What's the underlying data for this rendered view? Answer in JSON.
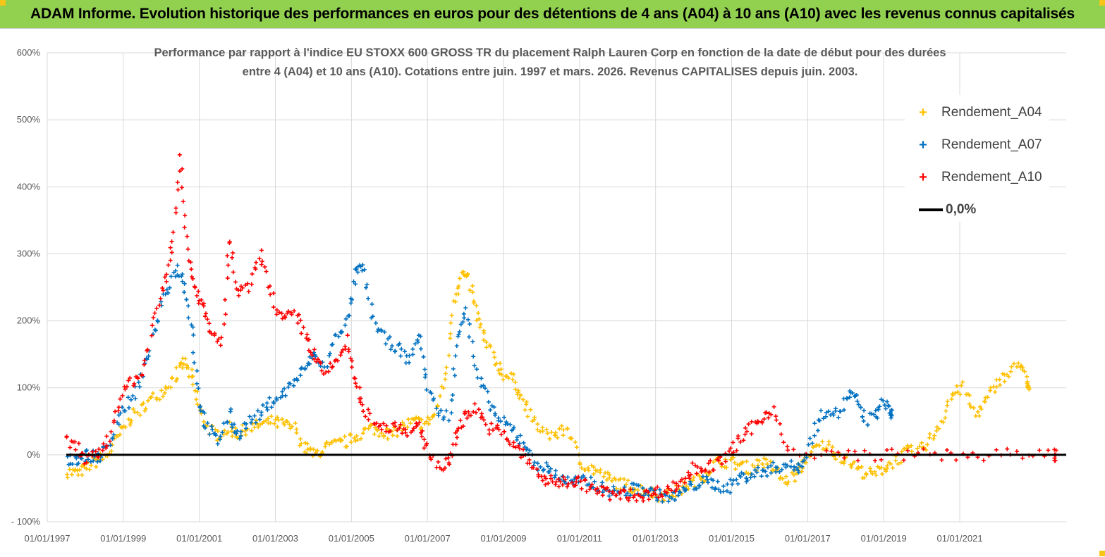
{
  "banner": {
    "title": "ADAM Informe. Evolution historique des performances en euros pour des détentions de 4 ans (A04) à 10 ans (A10) avec les revenus connus capitalisés"
  },
  "chart_data": {
    "type": "scatter",
    "title_line1": "Performance par rapport à l'indice EU STOXX 600 GROSS TR  du placement Ralph Lauren Corp en fonction de la date de début pour des durées",
    "title_line2": "entre 4 (A04) et 10 ans (A10).  Cotations entre juin. 1997 et mars. 2026.  Revenus CAPITALISES depuis juin. 2003.",
    "xlabel": "",
    "ylabel": "",
    "x_ticks": [
      "01/01/1997",
      "01/01/1999",
      "01/01/2001",
      "01/01/2003",
      "01/01/2005",
      "01/01/2007",
      "01/01/2009",
      "01/01/2011",
      "01/01/2013",
      "01/01/2015",
      "01/01/2017",
      "01/01/2019",
      "01/01/2021"
    ],
    "y_ticks": [
      "600%",
      "500%",
      "400%",
      "300%",
      "200%",
      "100%",
      "0%",
      "- 100%"
    ],
    "ylim": [
      -100,
      600
    ],
    "xlim": [
      1997.0,
      2023.8
    ],
    "grid": true,
    "legend_position": "top-right",
    "series": [
      {
        "name": "Rendement_A04",
        "color": "#ffc000",
        "marker": "+",
        "points": [
          [
            1997.5,
            -25
          ],
          [
            1997.8,
            -28
          ],
          [
            1998.0,
            -20
          ],
          [
            1998.3,
            -10
          ],
          [
            1998.6,
            0
          ],
          [
            1998.9,
            30
          ],
          [
            1999.2,
            55
          ],
          [
            1999.5,
            70
          ],
          [
            1999.8,
            85
          ],
          [
            2000.1,
            100
          ],
          [
            2000.4,
            120
          ],
          [
            2000.6,
            140
          ],
          [
            2000.8,
            115
          ],
          [
            2001.0,
            70
          ],
          [
            2001.2,
            40
          ],
          [
            2001.5,
            30
          ],
          [
            2001.8,
            40
          ],
          [
            2002.0,
            30
          ],
          [
            2002.3,
            40
          ],
          [
            2002.6,
            45
          ],
          [
            2002.9,
            50
          ],
          [
            2003.2,
            45
          ],
          [
            2003.5,
            40
          ],
          [
            2003.8,
            10
          ],
          [
            2004.0,
            0
          ],
          [
            2004.3,
            10
          ],
          [
            2004.6,
            15
          ],
          [
            2004.9,
            20
          ],
          [
            2005.2,
            30
          ],
          [
            2005.5,
            40
          ],
          [
            2005.8,
            35
          ],
          [
            2006.1,
            30
          ],
          [
            2006.4,
            45
          ],
          [
            2006.7,
            50
          ],
          [
            2006.9,
            45
          ],
          [
            2007.2,
            60
          ],
          [
            2007.5,
            120
          ],
          [
            2007.7,
            230
          ],
          [
            2007.9,
            270
          ],
          [
            2008.1,
            260
          ],
          [
            2008.3,
            210
          ],
          [
            2008.5,
            170
          ],
          [
            2008.8,
            140
          ],
          [
            2009.0,
            120
          ],
          [
            2009.3,
            110
          ],
          [
            2009.5,
            80
          ],
          [
            2009.8,
            50
          ],
          [
            2010.1,
            30
          ],
          [
            2010.4,
            30
          ],
          [
            2010.7,
            40
          ],
          [
            2011.0,
            -10
          ],
          [
            2011.3,
            -20
          ],
          [
            2011.6,
            -30
          ],
          [
            2011.9,
            -40
          ],
          [
            2012.2,
            -45
          ],
          [
            2012.5,
            -50
          ],
          [
            2012.8,
            -55
          ],
          [
            2013.1,
            -60
          ],
          [
            2013.4,
            -60
          ],
          [
            2013.7,
            -50
          ],
          [
            2014.0,
            -40
          ],
          [
            2014.3,
            -30
          ],
          [
            2014.6,
            -10
          ],
          [
            2014.9,
            -10
          ],
          [
            2015.2,
            -15
          ],
          [
            2015.5,
            -20
          ],
          [
            2015.8,
            -10
          ],
          [
            2016.1,
            -20
          ],
          [
            2016.4,
            -40
          ],
          [
            2016.7,
            -30
          ],
          [
            2016.9,
            -10
          ],
          [
            2017.2,
            10
          ],
          [
            2017.5,
            15
          ],
          [
            2017.8,
            0
          ],
          [
            2018.1,
            -10
          ],
          [
            2018.4,
            -25
          ],
          [
            2018.7,
            -30
          ],
          [
            2019.0,
            -20
          ],
          [
            2019.3,
            -10
          ],
          [
            2019.6,
            5
          ],
          [
            2019.9,
            5
          ],
          [
            2020.2,
            20
          ],
          [
            2020.5,
            50
          ],
          [
            2020.8,
            90
          ],
          [
            2021.1,
            100
          ],
          [
            2021.4,
            60
          ],
          [
            2021.7,
            80
          ],
          [
            2022.0,
            110
          ],
          [
            2022.3,
            120
          ],
          [
            2022.6,
            140
          ],
          [
            2022.8,
            100
          ]
        ]
      },
      {
        "name": "Rendement_A07",
        "color": "#0070c0",
        "marker": "+",
        "points": [
          [
            1997.5,
            -10
          ],
          [
            1997.8,
            -5
          ],
          [
            1998.0,
            0
          ],
          [
            1998.3,
            -5
          ],
          [
            1998.6,
            10
          ],
          [
            1998.9,
            60
          ],
          [
            1999.2,
            80
          ],
          [
            1999.5,
            120
          ],
          [
            1999.8,
            180
          ],
          [
            2000.1,
            240
          ],
          [
            2000.4,
            280
          ],
          [
            2000.6,
            260
          ],
          [
            2000.8,
            190
          ],
          [
            2001.0,
            80
          ],
          [
            2001.2,
            40
          ],
          [
            2001.5,
            20
          ],
          [
            2001.8,
            60
          ],
          [
            2002.0,
            30
          ],
          [
            2002.3,
            50
          ],
          [
            2002.6,
            60
          ],
          [
            2002.9,
            80
          ],
          [
            2003.2,
            90
          ],
          [
            2003.5,
            110
          ],
          [
            2003.8,
            130
          ],
          [
            2004.0,
            150
          ],
          [
            2004.3,
            130
          ],
          [
            2004.6,
            180
          ],
          [
            2004.9,
            200
          ],
          [
            2005.1,
            270
          ],
          [
            2005.3,
            280
          ],
          [
            2005.6,
            200
          ],
          [
            2005.9,
            170
          ],
          [
            2006.2,
            160
          ],
          [
            2006.5,
            140
          ],
          [
            2006.8,
            180
          ],
          [
            2007.0,
            100
          ],
          [
            2007.3,
            60
          ],
          [
            2007.6,
            60
          ],
          [
            2007.8,
            180
          ],
          [
            2008.0,
            220
          ],
          [
            2008.3,
            120
          ],
          [
            2008.6,
            80
          ],
          [
            2008.9,
            50
          ],
          [
            2009.2,
            40
          ],
          [
            2009.5,
            20
          ],
          [
            2009.8,
            -10
          ],
          [
            2010.1,
            -20
          ],
          [
            2010.4,
            -30
          ],
          [
            2010.7,
            -40
          ],
          [
            2011.0,
            -40
          ],
          [
            2011.3,
            -40
          ],
          [
            2011.6,
            -50
          ],
          [
            2011.9,
            -55
          ],
          [
            2012.2,
            -55
          ],
          [
            2012.5,
            -50
          ],
          [
            2012.8,
            -55
          ],
          [
            2013.1,
            -60
          ],
          [
            2013.4,
            -65
          ],
          [
            2013.7,
            -55
          ],
          [
            2014.0,
            -45
          ],
          [
            2014.3,
            -40
          ],
          [
            2014.6,
            -45
          ],
          [
            2014.9,
            -50
          ],
          [
            2015.2,
            -35
          ],
          [
            2015.5,
            -30
          ],
          [
            2015.8,
            -25
          ],
          [
            2016.1,
            -20
          ],
          [
            2016.4,
            -15
          ],
          [
            2016.7,
            -20
          ],
          [
            2016.9,
            -10
          ],
          [
            2017.2,
            40
          ],
          [
            2017.5,
            70
          ],
          [
            2017.8,
            60
          ],
          [
            2018.1,
            90
          ],
          [
            2018.3,
            80
          ],
          [
            2018.5,
            50
          ],
          [
            2018.8,
            60
          ],
          [
            2019.0,
            80
          ],
          [
            2019.2,
            60
          ]
        ]
      },
      {
        "name": "Rendement_A10",
        "color": "#ff0000",
        "marker": "+",
        "points": [
          [
            1997.5,
            20
          ],
          [
            1997.8,
            10
          ],
          [
            1998.0,
            -10
          ],
          [
            1998.3,
            0
          ],
          [
            1998.6,
            20
          ],
          [
            1998.9,
            80
          ],
          [
            1999.2,
            110
          ],
          [
            1999.5,
            120
          ],
          [
            1999.8,
            200
          ],
          [
            2000.1,
            260
          ],
          [
            2000.3,
            320
          ],
          [
            2000.5,
            450
          ],
          [
            2000.7,
            300
          ],
          [
            2000.9,
            250
          ],
          [
            2001.1,
            220
          ],
          [
            2001.3,
            180
          ],
          [
            2001.6,
            170
          ],
          [
            2001.8,
            320
          ],
          [
            2002.0,
            240
          ],
          [
            2002.3,
            250
          ],
          [
            2002.6,
            300
          ],
          [
            2002.9,
            240
          ],
          [
            2003.2,
            200
          ],
          [
            2003.5,
            210
          ],
          [
            2003.8,
            180
          ],
          [
            2004.0,
            150
          ],
          [
            2004.3,
            120
          ],
          [
            2004.6,
            140
          ],
          [
            2004.9,
            170
          ],
          [
            2005.1,
            110
          ],
          [
            2005.3,
            70
          ],
          [
            2005.6,
            50
          ],
          [
            2005.9,
            40
          ],
          [
            2006.2,
            45
          ],
          [
            2006.5,
            35
          ],
          [
            2006.8,
            40
          ],
          [
            2007.0,
            10
          ],
          [
            2007.3,
            -20
          ],
          [
            2007.6,
            -10
          ],
          [
            2007.8,
            40
          ],
          [
            2008.0,
            60
          ],
          [
            2008.3,
            70
          ],
          [
            2008.6,
            40
          ],
          [
            2008.9,
            35
          ],
          [
            2009.2,
            20
          ],
          [
            2009.5,
            0
          ],
          [
            2009.8,
            -20
          ],
          [
            2010.1,
            -40
          ],
          [
            2010.4,
            -40
          ],
          [
            2010.7,
            -40
          ],
          [
            2011.0,
            -40
          ],
          [
            2011.3,
            -50
          ],
          [
            2011.6,
            -55
          ],
          [
            2011.9,
            -60
          ],
          [
            2012.2,
            -60
          ],
          [
            2012.5,
            -60
          ],
          [
            2012.8,
            -60
          ],
          [
            2013.1,
            -55
          ],
          [
            2013.4,
            -50
          ],
          [
            2013.7,
            -40
          ],
          [
            2014.0,
            -20
          ],
          [
            2014.3,
            -20
          ],
          [
            2014.6,
            -15
          ],
          [
            2014.9,
            0
          ],
          [
            2015.2,
            20
          ],
          [
            2015.5,
            40
          ],
          [
            2015.8,
            55
          ],
          [
            2016.1,
            70
          ],
          [
            2016.5,
            0
          ],
          [
            2017.5,
            0
          ],
          [
            2018.5,
            0
          ],
          [
            2019.5,
            0
          ],
          [
            2020.5,
            0
          ],
          [
            2021.5,
            0
          ],
          [
            2022.5,
            0
          ],
          [
            2023.5,
            0
          ]
        ]
      },
      {
        "name": "0,0%",
        "color": "#000000",
        "marker": "line",
        "points": [
          [
            1997.5,
            0
          ],
          [
            2023.8,
            0
          ]
        ]
      }
    ]
  }
}
